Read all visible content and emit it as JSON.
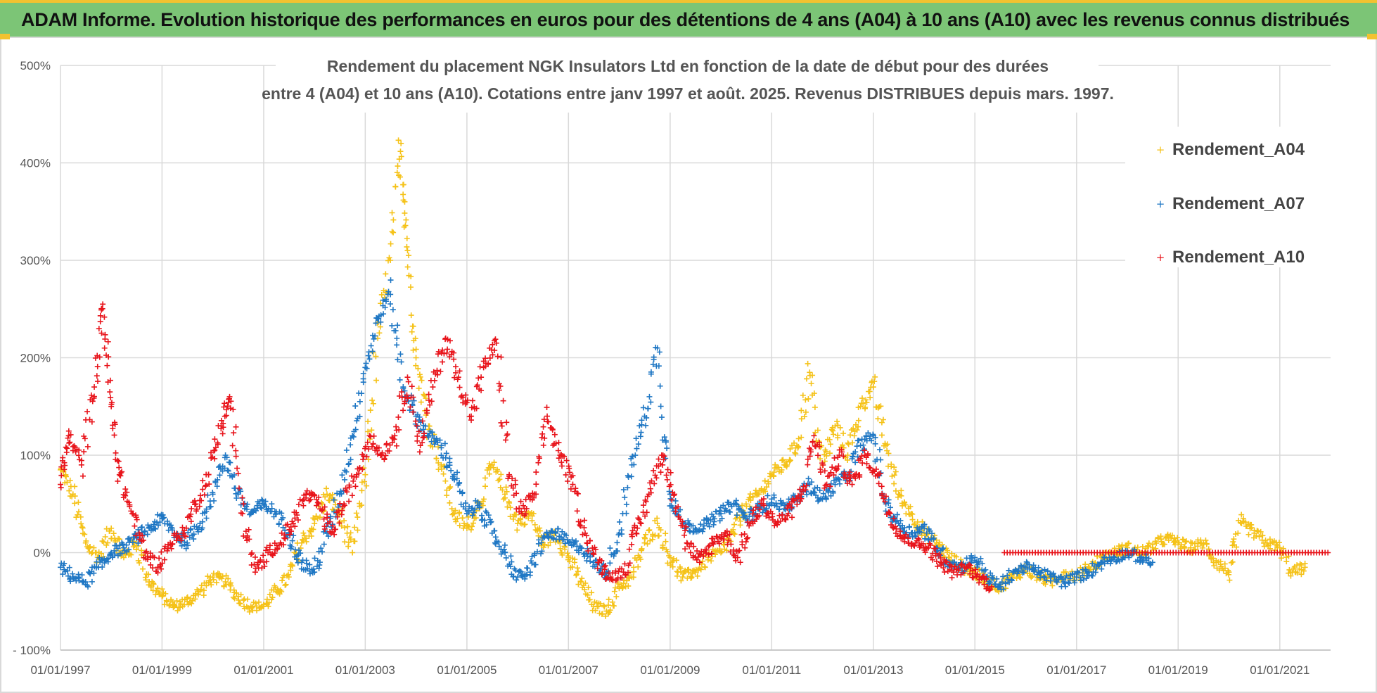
{
  "banner": {
    "text": "ADAM Informe. Evolution historique des performances en euros pour des détentions de 4 ans (A04) à 10 ans (A10) avec les revenus connus distribués"
  },
  "colors": {
    "banner_bg": "#7cc576",
    "a04": "#f5c218",
    "a07": "#1f77c4",
    "a10": "#e8141b",
    "grid": "#d9d9d9"
  },
  "chart_data": {
    "type": "scatter",
    "title_lines": [
      "Rendement du placement NGK Insulators Ltd en fonction de la date de début pour des durées",
      "entre 4 (A04) et 10 ans (A10). Cotations entre janv 1997 et août. 2025. Revenus DISTRIBUES depuis mars. 1997."
    ],
    "xlim": [
      "1997-01-01",
      "2022-01-01"
    ],
    "ylim": [
      -100,
      500
    ],
    "y_ticks": [
      "- 100%",
      "0%",
      "100%",
      "200%",
      "300%",
      "400%",
      "500%"
    ],
    "y_tick_values": [
      -100,
      0,
      100,
      200,
      300,
      400,
      500
    ],
    "x_ticks": [
      "01/01/1997",
      "01/01/1999",
      "01/01/2001",
      "01/01/2003",
      "01/01/2005",
      "01/01/2007",
      "01/01/2009",
      "01/01/2011",
      "01/01/2013",
      "01/01/2015",
      "01/01/2017",
      "01/01/2019",
      "01/01/2021"
    ],
    "grid": true,
    "legend_position": "top-right",
    "series": [
      {
        "name": "Rendement_A04",
        "color": "#f5c218",
        "points": [
          [
            "1997-01-01",
            85
          ],
          [
            "1997-04-01",
            60
          ],
          [
            "1997-07-01",
            10
          ],
          [
            "1997-10-01",
            -5
          ],
          [
            "1998-01-01",
            25
          ],
          [
            "1998-04-01",
            -5
          ],
          [
            "1998-07-01",
            10
          ],
          [
            "1998-10-01",
            -30
          ],
          [
            "1999-01-01",
            -45
          ],
          [
            "1999-04-01",
            -55
          ],
          [
            "1999-07-01",
            -50
          ],
          [
            "1999-10-01",
            -40
          ],
          [
            "2000-01-01",
            -25
          ],
          [
            "2000-04-01",
            -30
          ],
          [
            "2000-07-01",
            -45
          ],
          [
            "2000-10-01",
            -55
          ],
          [
            "2001-01-01",
            -55
          ],
          [
            "2001-04-01",
            -40
          ],
          [
            "2001-07-01",
            -25
          ],
          [
            "2001-10-01",
            10
          ],
          [
            "2002-01-01",
            30
          ],
          [
            "2002-04-01",
            60
          ],
          [
            "2002-07-01",
            40
          ],
          [
            "2002-10-01",
            0
          ],
          [
            "2003-01-01",
            80
          ],
          [
            "2003-04-01",
            220
          ],
          [
            "2003-07-01",
            300
          ],
          [
            "2003-09-15",
            420
          ],
          [
            "2003-11-01",
            310
          ],
          [
            "2004-01-01",
            200
          ],
          [
            "2004-04-01",
            130
          ],
          [
            "2004-07-01",
            90
          ],
          [
            "2004-10-01",
            40
          ],
          [
            "2005-01-01",
            25
          ],
          [
            "2005-04-01",
            50
          ],
          [
            "2005-07-01",
            90
          ],
          [
            "2005-10-01",
            60
          ],
          [
            "2006-01-01",
            30
          ],
          [
            "2006-04-01",
            40
          ],
          [
            "2006-07-01",
            10
          ],
          [
            "2006-10-01",
            20
          ],
          [
            "2007-01-01",
            -5
          ],
          [
            "2007-04-01",
            -30
          ],
          [
            "2007-07-01",
            -55
          ],
          [
            "2007-10-01",
            -60
          ],
          [
            "2008-01-01",
            -35
          ],
          [
            "2008-04-01",
            -25
          ],
          [
            "2008-07-01",
            10
          ],
          [
            "2008-10-01",
            30
          ],
          [
            "2009-01-01",
            -5
          ],
          [
            "2009-04-01",
            -25
          ],
          [
            "2009-07-01",
            -20
          ],
          [
            "2009-10-01",
            -5
          ],
          [
            "2010-01-01",
            0
          ],
          [
            "2010-04-01",
            20
          ],
          [
            "2010-07-01",
            50
          ],
          [
            "2010-10-01",
            60
          ],
          [
            "2011-01-01",
            80
          ],
          [
            "2011-04-01",
            90
          ],
          [
            "2011-07-01",
            110
          ],
          [
            "2011-10-01",
            185
          ],
          [
            "2012-01-01",
            90
          ],
          [
            "2012-04-01",
            130
          ],
          [
            "2012-07-01",
            100
          ],
          [
            "2012-10-01",
            150
          ],
          [
            "2013-01-01",
            170
          ],
          [
            "2013-04-01",
            110
          ],
          [
            "2013-07-01",
            60
          ],
          [
            "2013-10-01",
            40
          ],
          [
            "2014-01-01",
            20
          ],
          [
            "2014-04-01",
            10
          ],
          [
            "2014-07-01",
            -5
          ],
          [
            "2014-10-01",
            -15
          ],
          [
            "2015-01-01",
            -20
          ],
          [
            "2015-04-01",
            -30
          ],
          [
            "2015-07-01",
            -35
          ],
          [
            "2015-10-01",
            -25
          ],
          [
            "2016-01-01",
            -15
          ],
          [
            "2016-04-01",
            -25
          ],
          [
            "2016-07-01",
            -30
          ],
          [
            "2016-10-01",
            -20
          ],
          [
            "2017-01-01",
            -25
          ],
          [
            "2017-04-01",
            -15
          ],
          [
            "2017-07-01",
            -5
          ],
          [
            "2017-10-01",
            0
          ],
          [
            "2018-01-01",
            5
          ],
          [
            "2018-04-01",
            0
          ],
          [
            "2018-07-01",
            5
          ],
          [
            "2018-10-01",
            15
          ],
          [
            "2019-01-01",
            10
          ],
          [
            "2019-04-01",
            5
          ],
          [
            "2019-07-01",
            10
          ],
          [
            "2019-10-01",
            -10
          ],
          [
            "2020-01-01",
            -20
          ],
          [
            "2020-04-01",
            30
          ],
          [
            "2020-07-01",
            20
          ],
          [
            "2020-10-01",
            10
          ],
          [
            "2021-01-01",
            5
          ],
          [
            "2021-04-01",
            -20
          ],
          [
            "2021-07-01",
            -15
          ]
        ]
      },
      {
        "name": "Rendement_A07",
        "color": "#1f77c4",
        "points": [
          [
            "1997-01-01",
            -15
          ],
          [
            "1997-04-01",
            -25
          ],
          [
            "1997-07-01",
            -30
          ],
          [
            "1997-10-01",
            -15
          ],
          [
            "1998-01-01",
            0
          ],
          [
            "1998-04-01",
            5
          ],
          [
            "1998-07-01",
            15
          ],
          [
            "1998-10-01",
            25
          ],
          [
            "1999-01-01",
            35
          ],
          [
            "1999-04-01",
            20
          ],
          [
            "1999-07-01",
            10
          ],
          [
            "1999-10-01",
            30
          ],
          [
            "2000-01-01",
            60
          ],
          [
            "2000-04-01",
            100
          ],
          [
            "2000-07-01",
            60
          ],
          [
            "2000-10-01",
            40
          ],
          [
            "2001-01-01",
            50
          ],
          [
            "2001-04-01",
            40
          ],
          [
            "2001-07-01",
            20
          ],
          [
            "2001-10-01",
            -10
          ],
          [
            "2002-01-01",
            -20
          ],
          [
            "2002-04-01",
            20
          ],
          [
            "2002-07-01",
            60
          ],
          [
            "2002-10-01",
            120
          ],
          [
            "2003-01-01",
            190
          ],
          [
            "2003-04-01",
            240
          ],
          [
            "2003-07-01",
            265
          ],
          [
            "2003-10-01",
            170
          ],
          [
            "2004-01-01",
            140
          ],
          [
            "2004-04-01",
            120
          ],
          [
            "2004-07-01",
            110
          ],
          [
            "2004-10-01",
            80
          ],
          [
            "2005-01-01",
            40
          ],
          [
            "2005-04-01",
            50
          ],
          [
            "2005-07-01",
            20
          ],
          [
            "2005-10-01",
            0
          ],
          [
            "2006-01-01",
            -25
          ],
          [
            "2006-04-01",
            -20
          ],
          [
            "2006-07-01",
            15
          ],
          [
            "2006-10-01",
            20
          ],
          [
            "2007-01-01",
            10
          ],
          [
            "2007-04-01",
            5
          ],
          [
            "2007-07-01",
            -10
          ],
          [
            "2007-10-01",
            -20
          ],
          [
            "2008-01-01",
            20
          ],
          [
            "2008-04-01",
            90
          ],
          [
            "2008-07-01",
            140
          ],
          [
            "2008-10-01",
            210
          ],
          [
            "2009-01-01",
            60
          ],
          [
            "2009-04-01",
            30
          ],
          [
            "2009-07-01",
            25
          ],
          [
            "2009-10-01",
            30
          ],
          [
            "2010-01-01",
            40
          ],
          [
            "2010-04-01",
            50
          ],
          [
            "2010-07-01",
            35
          ],
          [
            "2010-10-01",
            45
          ],
          [
            "2011-01-01",
            55
          ],
          [
            "2011-04-01",
            45
          ],
          [
            "2011-07-01",
            55
          ],
          [
            "2011-10-01",
            70
          ],
          [
            "2012-01-01",
            55
          ],
          [
            "2012-04-01",
            70
          ],
          [
            "2012-07-01",
            80
          ],
          [
            "2012-10-01",
            110
          ],
          [
            "2013-01-01",
            120
          ],
          [
            "2013-04-01",
            50
          ],
          [
            "2013-07-01",
            30
          ],
          [
            "2013-10-01",
            20
          ],
          [
            "2014-01-01",
            25
          ],
          [
            "2014-04-01",
            5
          ],
          [
            "2014-07-01",
            -10
          ],
          [
            "2014-10-01",
            -15
          ],
          [
            "2015-01-01",
            -5
          ],
          [
            "2015-04-01",
            -25
          ],
          [
            "2015-07-01",
            -35
          ],
          [
            "2015-10-01",
            -20
          ],
          [
            "2016-01-01",
            -15
          ],
          [
            "2016-04-01",
            -20
          ],
          [
            "2016-07-01",
            -25
          ],
          [
            "2016-10-01",
            -30
          ],
          [
            "2017-01-01",
            -25
          ],
          [
            "2017-04-01",
            -20
          ],
          [
            "2017-07-01",
            -10
          ],
          [
            "2017-10-01",
            -5
          ],
          [
            "2018-01-01",
            0
          ],
          [
            "2018-04-01",
            -5
          ],
          [
            "2018-07-01",
            -10
          ]
        ]
      },
      {
        "name": "Rendement_A10",
        "color": "#e8141b",
        "points": [
          [
            "1997-01-01",
            70
          ],
          [
            "1997-03-01",
            120
          ],
          [
            "1997-06-01",
            90
          ],
          [
            "1997-09-01",
            170
          ],
          [
            "1997-11-01",
            255
          ],
          [
            "1998-01-01",
            150
          ],
          [
            "1998-03-01",
            80
          ],
          [
            "1998-06-01",
            40
          ],
          [
            "1998-09-01",
            0
          ],
          [
            "1998-12-01",
            -15
          ],
          [
            "1999-03-01",
            10
          ],
          [
            "1999-06-01",
            20
          ],
          [
            "1999-09-01",
            50
          ],
          [
            "1999-12-01",
            80
          ],
          [
            "2000-03-01",
            130
          ],
          [
            "2000-05-01",
            160
          ],
          [
            "2000-08-01",
            40
          ],
          [
            "2000-11-01",
            -20
          ],
          [
            "2001-02-01",
            0
          ],
          [
            "2001-05-01",
            10
          ],
          [
            "2001-08-01",
            30
          ],
          [
            "2001-11-01",
            60
          ],
          [
            "2002-02-01",
            50
          ],
          [
            "2002-05-01",
            20
          ],
          [
            "2002-08-01",
            50
          ],
          [
            "2002-11-01",
            80
          ],
          [
            "2003-02-01",
            120
          ],
          [
            "2003-05-01",
            100
          ],
          [
            "2003-08-01",
            120
          ],
          [
            "2003-11-01",
            180
          ],
          [
            "2004-02-01",
            110
          ],
          [
            "2004-05-01",
            170
          ],
          [
            "2004-08-01",
            220
          ],
          [
            "2004-11-01",
            180
          ],
          [
            "2005-02-01",
            140
          ],
          [
            "2005-05-01",
            190
          ],
          [
            "2005-08-01",
            215
          ],
          [
            "2005-11-01",
            80
          ],
          [
            "2006-02-01",
            40
          ],
          [
            "2006-05-01",
            60
          ],
          [
            "2006-08-01",
            140
          ],
          [
            "2006-11-01",
            100
          ],
          [
            "2007-02-01",
            70
          ],
          [
            "2007-05-01",
            20
          ],
          [
            "2007-08-01",
            -10
          ],
          [
            "2007-11-01",
            -25
          ],
          [
            "2008-02-01",
            -20
          ],
          [
            "2008-05-01",
            20
          ],
          [
            "2008-08-01",
            60
          ],
          [
            "2008-11-01",
            100
          ],
          [
            "2009-02-01",
            60
          ],
          [
            "2009-05-01",
            10
          ],
          [
            "2009-08-01",
            -10
          ],
          [
            "2009-11-01",
            10
          ],
          [
            "2010-02-01",
            20
          ],
          [
            "2010-05-01",
            -5
          ],
          [
            "2010-08-01",
            30
          ],
          [
            "2010-11-01",
            50
          ],
          [
            "2011-02-01",
            30
          ],
          [
            "2011-05-01",
            40
          ],
          [
            "2011-08-01",
            60
          ],
          [
            "2011-11-01",
            120
          ],
          [
            "2012-02-01",
            70
          ],
          [
            "2012-05-01",
            100
          ],
          [
            "2012-08-01",
            70
          ],
          [
            "2012-11-01",
            100
          ],
          [
            "2013-02-01",
            80
          ],
          [
            "2013-05-01",
            40
          ],
          [
            "2013-08-01",
            15
          ],
          [
            "2013-11-01",
            10
          ],
          [
            "2014-02-01",
            5
          ],
          [
            "2014-05-01",
            -10
          ],
          [
            "2014-08-01",
            -20
          ],
          [
            "2014-11-01",
            -15
          ],
          [
            "2015-02-01",
            -25
          ],
          [
            "2015-05-01",
            -35
          ]
        ],
        "flat_segment": {
          "from": "2015-08-01",
          "to": "2022-01-01",
          "value": 0
        }
      }
    ]
  }
}
